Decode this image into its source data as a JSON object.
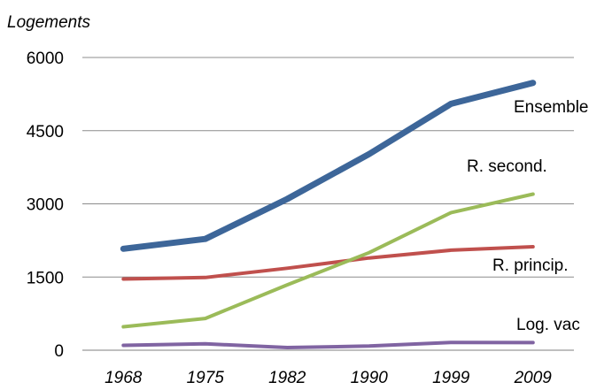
{
  "chart_data": {
    "type": "line",
    "ylabel": "Logements",
    "xlabel": "",
    "categories": [
      "1968",
      "1975",
      "1982",
      "1990",
      "1999",
      "2009"
    ],
    "ylim": [
      0,
      6000
    ],
    "yticks": [
      "0",
      "1500",
      "3000",
      "4500",
      "6000"
    ],
    "grid": true,
    "legend": "labels at line ends",
    "series": [
      {
        "name": "Ensemble",
        "color": "#3d6699",
        "values": [
          2080,
          2280,
          3100,
          4020,
          5050,
          5480
        ]
      },
      {
        "name": "R. second.",
        "color": "#9bbb59",
        "values": [
          480,
          650,
          1340,
          2000,
          2820,
          3200
        ]
      },
      {
        "name": "R. princip.",
        "color": "#c0504d",
        "values": [
          1460,
          1490,
          1680,
          1890,
          2050,
          2120
        ]
      },
      {
        "name": "Log. vac",
        "color": "#8064a2",
        "values": [
          100,
          130,
          55,
          85,
          160,
          155
        ]
      }
    ]
  }
}
